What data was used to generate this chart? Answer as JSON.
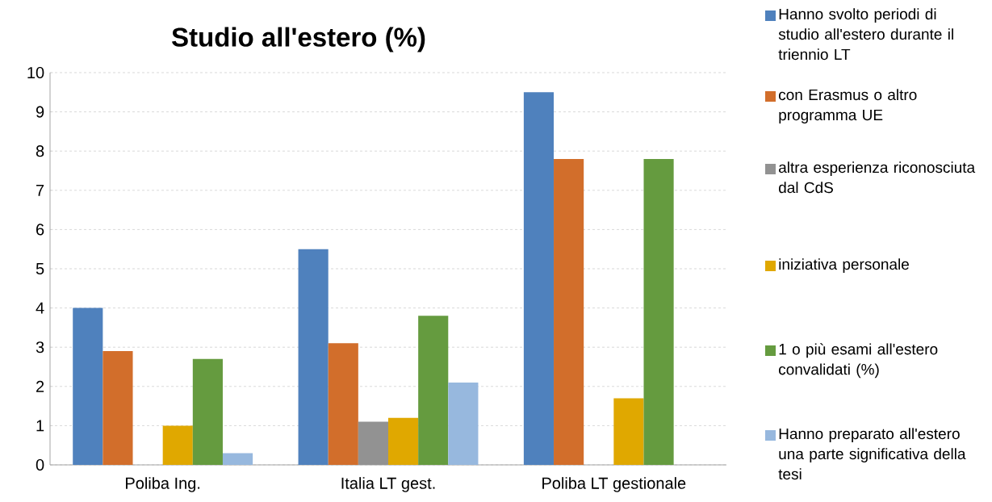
{
  "chart_data": {
    "type": "bar",
    "title": "Studio all'estero (%)",
    "categories": [
      "Poliba Ing.",
      "Italia LT gest.",
      "Poliba LT gestionale"
    ],
    "series": [
      {
        "name": "Hanno svolto periodi di studio all'estero durante il triennio LT",
        "color": "#4f81bd",
        "values": [
          4.0,
          5.5,
          9.5
        ]
      },
      {
        "name": "con Erasmus o altro programma UE",
        "color": "#d26e2b",
        "values": [
          2.9,
          3.1,
          7.8
        ]
      },
      {
        "name": "altra esperienza riconosciuta dal CdS",
        "color": "#929292",
        "values": [
          null,
          1.1,
          null
        ]
      },
      {
        "name": "iniziativa personale",
        "color": "#e0a800",
        "values": [
          1.0,
          1.2,
          1.7
        ]
      },
      {
        "name": "1 o più esami all'estero convalidati (%)",
        "color": "#659b3f",
        "values": [
          2.7,
          3.8,
          7.8
        ]
      },
      {
        "name": "Hanno preparato all'estero una parte significativa della tesi",
        "color": "#97b8de",
        "values": [
          0.3,
          2.1,
          null
        ]
      }
    ],
    "ylim": [
      0,
      10
    ],
    "yticks": [
      0,
      1,
      2,
      3,
      4,
      5,
      6,
      7,
      8,
      9,
      10
    ],
    "grid": "y",
    "legend": "right"
  }
}
